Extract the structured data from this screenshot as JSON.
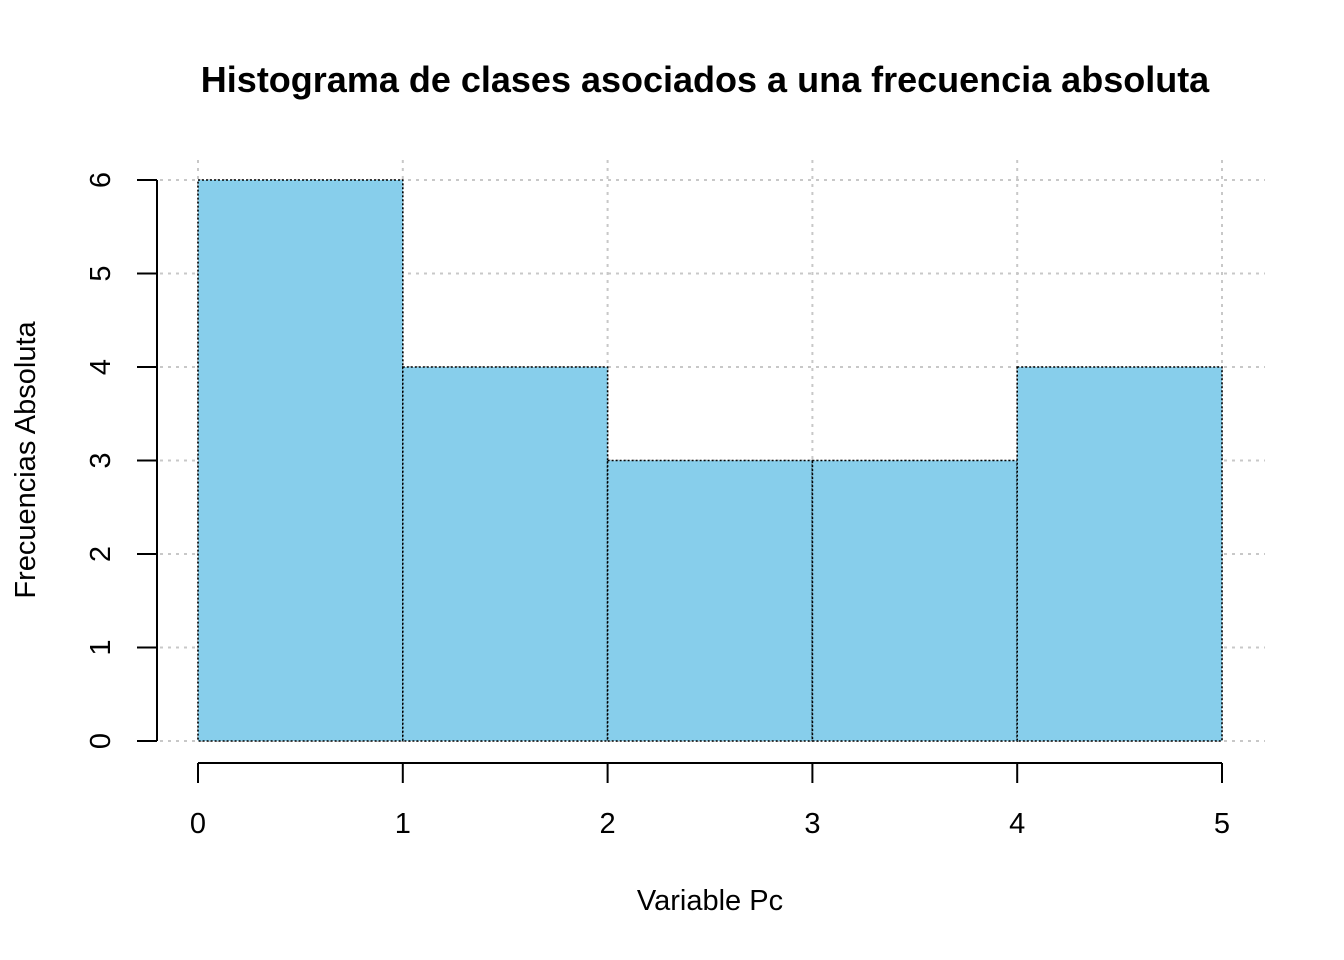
{
  "chart_data": {
    "type": "bar",
    "title": "Histograma de clases asociados a una frecuencia absoluta",
    "xlabel": "Variable Pc",
    "ylabel": "Frecuencias Absoluta",
    "bins": [
      [
        0,
        1
      ],
      [
        1,
        2
      ],
      [
        2,
        3
      ],
      [
        3,
        4
      ],
      [
        4,
        5
      ]
    ],
    "values": [
      6,
      4,
      3,
      3,
      4
    ],
    "xlim": [
      0,
      5
    ],
    "ylim": [
      0,
      6
    ],
    "x_ticks": [
      0,
      1,
      2,
      3,
      4,
      5
    ],
    "y_ticks": [
      0,
      1,
      2,
      3,
      4,
      5,
      6
    ],
    "grid": true,
    "bar_color": "#87CEEB",
    "border_color": "#000000",
    "grid_color": "#C8C8C8"
  }
}
